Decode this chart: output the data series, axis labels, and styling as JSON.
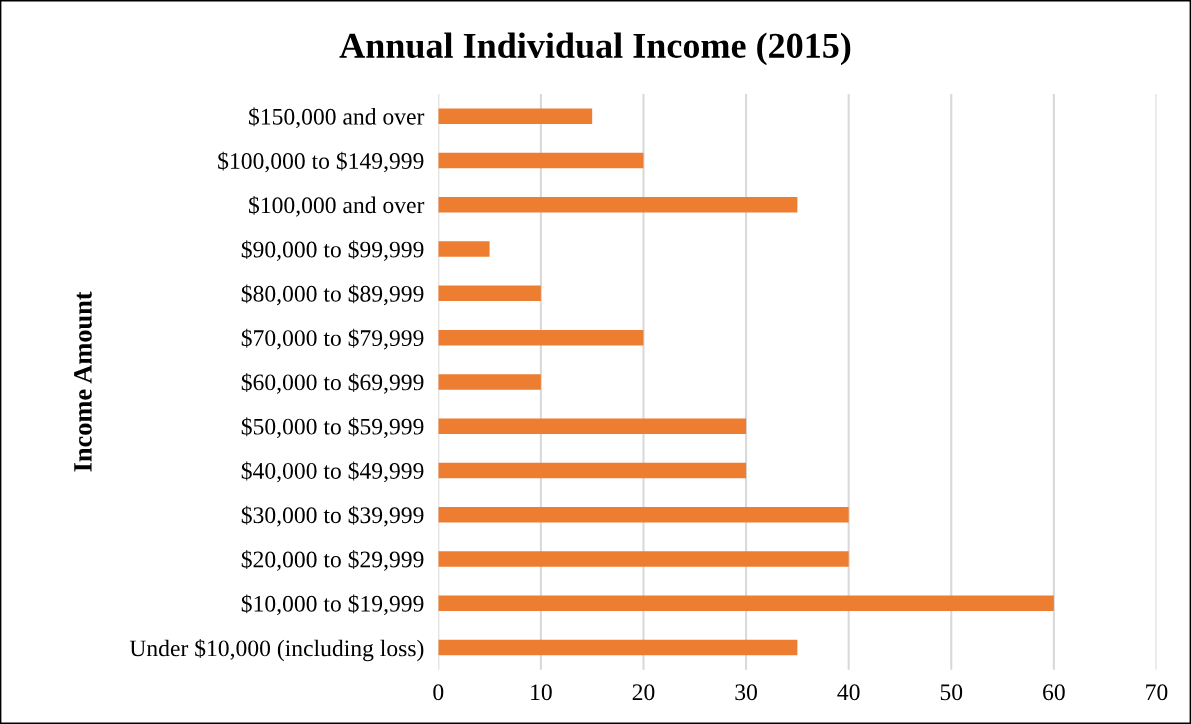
{
  "chart_data": {
    "type": "bar",
    "orientation": "horizontal",
    "title": "Annual Individual Income (2015)",
    "ylabel": "Income Amount",
    "categories": [
      "$150,000 and over",
      "$100,000 to $149,999",
      "$100,000 and over",
      "$90,000 to $99,999",
      "$80,000 to $89,999",
      "$70,000 to $79,999",
      "$60,000 to $69,999",
      "$50,000 to $59,999",
      "$40,000 to $49,999",
      "$30,000 to $39,999",
      "$20,000 to $29,999",
      "$10,000 to $19,999",
      "Under $10,000 (including loss)"
    ],
    "values": [
      15,
      20,
      35,
      5,
      10,
      20,
      10,
      30,
      30,
      40,
      40,
      60,
      35
    ],
    "color": "#ed7d31",
    "xlim": [
      0,
      70
    ],
    "xticks": [
      0,
      10,
      20,
      30,
      40,
      50,
      60,
      70
    ],
    "grid": "x",
    "legend": false
  }
}
